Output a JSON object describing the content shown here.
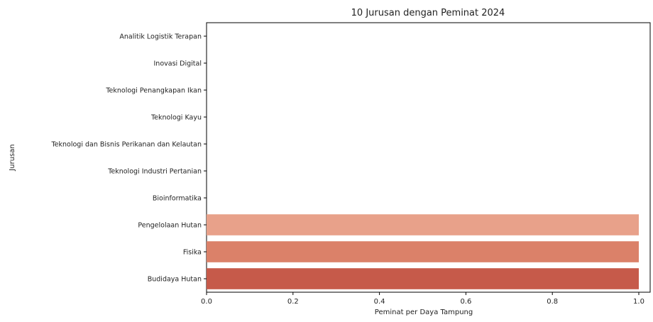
{
  "chart_data": {
    "type": "bar",
    "orientation": "horizontal",
    "title": "10 Jurusan dengan Peminat 2024",
    "xlabel": "Peminat per Daya Tampung",
    "ylabel": "Jurusan",
    "xlim": [
      0,
      1.0
    ],
    "xticks": [
      "0.0",
      "0.2",
      "0.4",
      "0.6",
      "0.8",
      "1.0"
    ],
    "grid": false,
    "categories": [
      "Analitik Logistik Terapan",
      "Inovasi Digital",
      "Teknologi Penangkapan Ikan",
      "Teknologi Kayu",
      "Teknologi dan Bisnis Perikanan dan Kelautan",
      "Teknologi Industri Pertanian",
      "Bioinformatika",
      "Pengelolaan Hutan",
      "Fisika",
      "Budidaya Hutan"
    ],
    "values": [
      0,
      0,
      0,
      0,
      0,
      0,
      0,
      1.0,
      1.0,
      1.0
    ],
    "colors": [
      "#fbe3d8",
      "#f9d6c8",
      "#f7c9b7",
      "#f4bba5",
      "#f2ad94",
      "#efa183",
      "#ec9677",
      "#e8a18a",
      "#db8169",
      "#c65a4a"
    ]
  }
}
